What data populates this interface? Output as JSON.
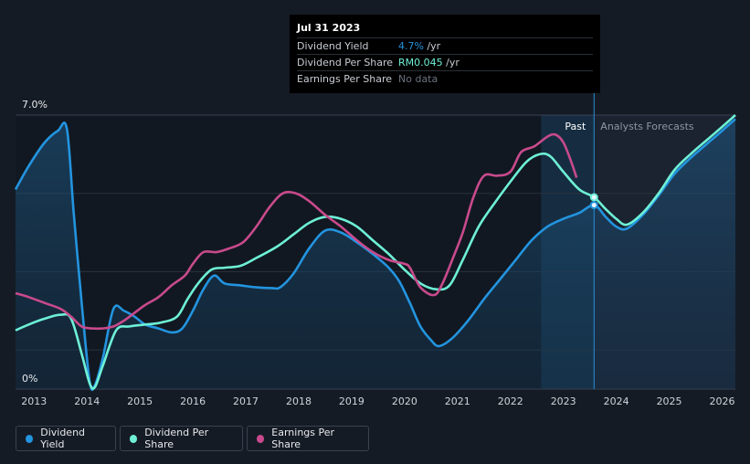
{
  "colors": {
    "dividend_yield": "#2394df",
    "dividend_per_share": "#6ef0d6",
    "earnings_per_share": "#c84a8c",
    "background": "#151b24",
    "plot_background": "#111821",
    "forecast_background": "#1b2230"
  },
  "tooltip": {
    "date": "Jul 31 2023",
    "rows": [
      {
        "label": "Dividend Yield",
        "value": "4.7%",
        "unit": " /yr",
        "color": "#2394df"
      },
      {
        "label": "Dividend Per Share",
        "value": "RM0.045",
        "unit": " /yr",
        "color": "#6ef0d6"
      },
      {
        "label": "Earnings Per Share",
        "value": "No data",
        "unit": "",
        "color": "#6b7280"
      }
    ]
  },
  "regions": {
    "past": "Past",
    "forecast": "Analysts Forecasts"
  },
  "legend": [
    {
      "label": "Dividend Yield",
      "color": "#2394df"
    },
    {
      "label": "Dividend Per Share",
      "color": "#6ef0d6"
    },
    {
      "label": "Earnings Per Share",
      "color": "#c84a8c"
    }
  ],
  "chart_data": {
    "type": "line",
    "title": "",
    "xlabel": "",
    "ylabel": "",
    "ylim": [
      0,
      7.0
    ],
    "xlim": [
      2012.65,
      2026.25
    ],
    "y_tick_labels": [
      "0%",
      "7.0%"
    ],
    "x_ticks": [
      "2013",
      "2014",
      "2015",
      "2016",
      "2017",
      "2018",
      "2019",
      "2020",
      "2021",
      "2022",
      "2023",
      "2024",
      "2025",
      "2026"
    ],
    "past_end": 2023.58,
    "highlight_start": 2022.58,
    "grid": true,
    "legend_position": "bottom-left",
    "series": [
      {
        "name": "Dividend Yield",
        "points": [
          [
            2012.65,
            5.1
          ],
          [
            2012.9,
            5.7
          ],
          [
            2013.2,
            6.3
          ],
          [
            2013.45,
            6.6
          ],
          [
            2013.62,
            6.65
          ],
          [
            2013.75,
            4.5
          ],
          [
            2013.9,
            2.2
          ],
          [
            2014.05,
            0.2
          ],
          [
            2014.15,
            0.1
          ],
          [
            2014.3,
            0.8
          ],
          [
            2014.5,
            2.05
          ],
          [
            2014.7,
            2.0
          ],
          [
            2014.9,
            1.85
          ],
          [
            2015.1,
            1.65
          ],
          [
            2015.35,
            1.55
          ],
          [
            2015.6,
            1.45
          ],
          [
            2015.8,
            1.55
          ],
          [
            2016.0,
            2.0
          ],
          [
            2016.2,
            2.55
          ],
          [
            2016.4,
            2.9
          ],
          [
            2016.6,
            2.7
          ],
          [
            2016.9,
            2.65
          ],
          [
            2017.2,
            2.6
          ],
          [
            2017.5,
            2.58
          ],
          [
            2017.65,
            2.6
          ],
          [
            2017.9,
            2.95
          ],
          [
            2018.2,
            3.6
          ],
          [
            2018.5,
            4.05
          ],
          [
            2018.8,
            4.0
          ],
          [
            2019.1,
            3.75
          ],
          [
            2019.4,
            3.45
          ],
          [
            2019.7,
            3.1
          ],
          [
            2019.9,
            2.75
          ],
          [
            2020.1,
            2.2
          ],
          [
            2020.3,
            1.6
          ],
          [
            2020.5,
            1.25
          ],
          [
            2020.65,
            1.1
          ],
          [
            2020.9,
            1.3
          ],
          [
            2021.2,
            1.75
          ],
          [
            2021.5,
            2.3
          ],
          [
            2021.8,
            2.8
          ],
          [
            2022.1,
            3.3
          ],
          [
            2022.4,
            3.8
          ],
          [
            2022.7,
            4.15
          ],
          [
            2023.0,
            4.35
          ],
          [
            2023.3,
            4.5
          ],
          [
            2023.58,
            4.7
          ],
          [
            2023.8,
            4.4
          ],
          [
            2024.0,
            4.15
          ],
          [
            2024.2,
            4.1
          ],
          [
            2024.5,
            4.45
          ],
          [
            2024.8,
            4.95
          ],
          [
            2025.1,
            5.5
          ],
          [
            2025.4,
            5.9
          ],
          [
            2025.7,
            6.25
          ],
          [
            2026.0,
            6.6
          ],
          [
            2026.25,
            6.9
          ]
        ]
      },
      {
        "name": "Dividend Per Share",
        "points": [
          [
            2012.65,
            1.5
          ],
          [
            2012.9,
            1.65
          ],
          [
            2013.2,
            1.8
          ],
          [
            2013.5,
            1.9
          ],
          [
            2013.7,
            1.8
          ],
          [
            2013.9,
            0.9
          ],
          [
            2014.05,
            0.15
          ],
          [
            2014.15,
            0.05
          ],
          [
            2014.3,
            0.6
          ],
          [
            2014.55,
            1.5
          ],
          [
            2014.8,
            1.6
          ],
          [
            2015.1,
            1.65
          ],
          [
            2015.4,
            1.7
          ],
          [
            2015.7,
            1.85
          ],
          [
            2015.9,
            2.3
          ],
          [
            2016.1,
            2.7
          ],
          [
            2016.35,
            3.05
          ],
          [
            2016.6,
            3.1
          ],
          [
            2016.9,
            3.15
          ],
          [
            2017.2,
            3.35
          ],
          [
            2017.6,
            3.65
          ],
          [
            2017.9,
            3.95
          ],
          [
            2018.2,
            4.25
          ],
          [
            2018.5,
            4.4
          ],
          [
            2018.8,
            4.35
          ],
          [
            2019.1,
            4.15
          ],
          [
            2019.4,
            3.8
          ],
          [
            2019.7,
            3.45
          ],
          [
            2020.0,
            3.05
          ],
          [
            2020.3,
            2.7
          ],
          [
            2020.6,
            2.55
          ],
          [
            2020.85,
            2.65
          ],
          [
            2021.1,
            3.3
          ],
          [
            2021.4,
            4.15
          ],
          [
            2021.7,
            4.75
          ],
          [
            2022.0,
            5.3
          ],
          [
            2022.3,
            5.8
          ],
          [
            2022.55,
            6.0
          ],
          [
            2022.75,
            5.95
          ],
          [
            2023.0,
            5.55
          ],
          [
            2023.3,
            5.1
          ],
          [
            2023.58,
            4.9
          ],
          [
            2023.8,
            4.6
          ],
          [
            2024.0,
            4.35
          ],
          [
            2024.2,
            4.2
          ],
          [
            2024.5,
            4.5
          ],
          [
            2024.8,
            5.0
          ],
          [
            2025.1,
            5.6
          ],
          [
            2025.4,
            6.0
          ],
          [
            2025.7,
            6.35
          ],
          [
            2026.0,
            6.7
          ],
          [
            2026.25,
            7.0
          ]
        ]
      },
      {
        "name": "Earnings Per Share",
        "points": [
          [
            2012.65,
            2.45
          ],
          [
            2012.9,
            2.35
          ],
          [
            2013.2,
            2.2
          ],
          [
            2013.5,
            2.05
          ],
          [
            2013.7,
            1.85
          ],
          [
            2013.9,
            1.6
          ],
          [
            2014.1,
            1.55
          ],
          [
            2014.3,
            1.55
          ],
          [
            2014.5,
            1.6
          ],
          [
            2014.7,
            1.75
          ],
          [
            2014.9,
            1.95
          ],
          [
            2015.1,
            2.15
          ],
          [
            2015.35,
            2.35
          ],
          [
            2015.6,
            2.65
          ],
          [
            2015.85,
            2.9
          ],
          [
            2016.0,
            3.2
          ],
          [
            2016.2,
            3.5
          ],
          [
            2016.45,
            3.5
          ],
          [
            2016.7,
            3.6
          ],
          [
            2016.95,
            3.75
          ],
          [
            2017.2,
            4.15
          ],
          [
            2017.45,
            4.65
          ],
          [
            2017.7,
            5.0
          ],
          [
            2017.95,
            5.0
          ],
          [
            2018.2,
            4.8
          ],
          [
            2018.5,
            4.45
          ],
          [
            2018.8,
            4.15
          ],
          [
            2019.1,
            3.8
          ],
          [
            2019.4,
            3.5
          ],
          [
            2019.7,
            3.3
          ],
          [
            2020.0,
            3.2
          ],
          [
            2020.1,
            3.1
          ],
          [
            2020.3,
            2.6
          ],
          [
            2020.55,
            2.4
          ],
          [
            2020.7,
            2.65
          ],
          [
            2020.9,
            3.3
          ],
          [
            2021.1,
            4.0
          ],
          [
            2021.3,
            4.9
          ],
          [
            2021.5,
            5.45
          ],
          [
            2021.75,
            5.45
          ],
          [
            2022.0,
            5.55
          ],
          [
            2022.2,
            6.05
          ],
          [
            2022.45,
            6.2
          ],
          [
            2022.7,
            6.45
          ],
          [
            2022.85,
            6.5
          ],
          [
            2023.0,
            6.3
          ],
          [
            2023.15,
            5.8
          ],
          [
            2023.25,
            5.4
          ]
        ]
      }
    ]
  }
}
